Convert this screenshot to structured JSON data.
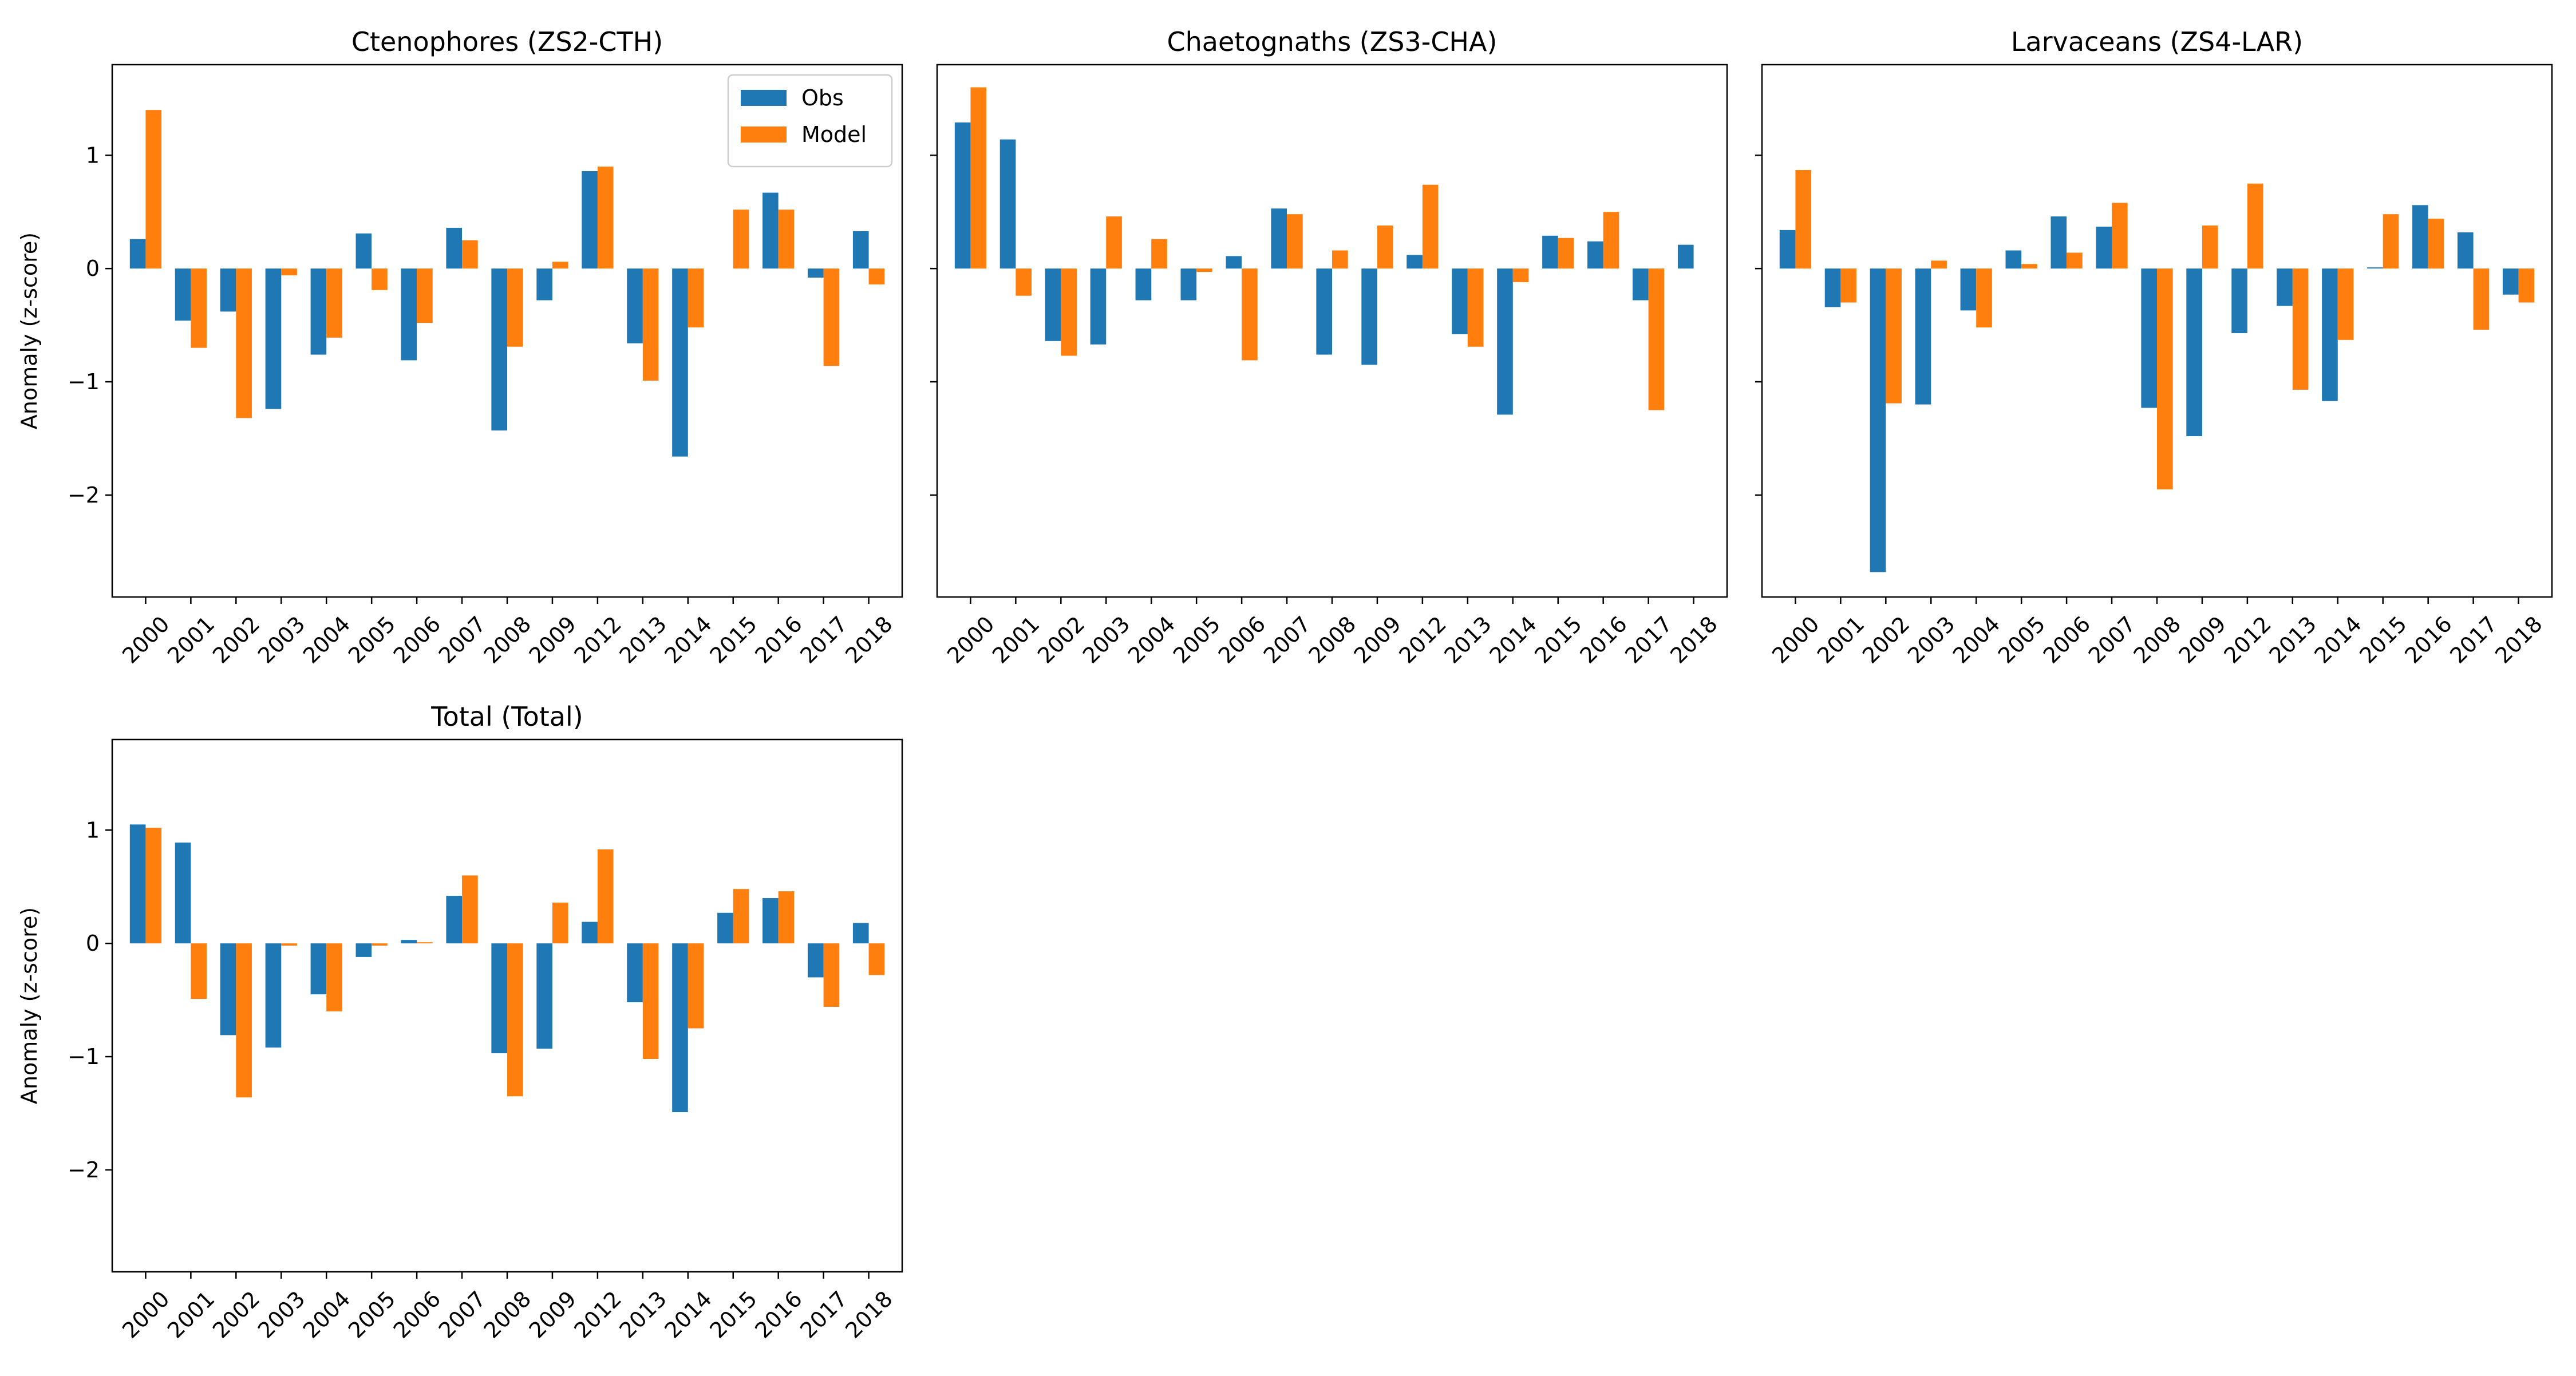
{
  "colors": {
    "obs": "#1f77b4",
    "model": "#ff7f0e"
  },
  "chart_data": [
    {
      "type": "bar",
      "title": "Ctenophores (ZS2-CTH)",
      "ylabel": "Anomaly (z-score)",
      "ylim": [
        -2.9,
        1.8
      ],
      "yticks": [
        1,
        0,
        -1,
        -2
      ],
      "ytick_labels": [
        "1",
        "0",
        "−1",
        "−2"
      ],
      "legend": {
        "show": true,
        "placement": "top-right",
        "entries": [
          "Obs",
          "Model"
        ]
      },
      "categories": [
        "2000",
        "2001",
        "2002",
        "2003",
        "2004",
        "2005",
        "2006",
        "2007",
        "2008",
        "2009",
        "2012",
        "2013",
        "2014",
        "2015",
        "2016",
        "2017",
        "2018"
      ],
      "series": [
        {
          "name": "Obs",
          "values": [
            0.26,
            -0.46,
            -0.38,
            -1.24,
            -0.76,
            0.31,
            -0.81,
            0.36,
            -1.43,
            -0.28,
            0.86,
            -0.66,
            -1.66,
            0.0,
            0.67,
            -0.08,
            0.33
          ]
        },
        {
          "name": "Model",
          "values": [
            1.4,
            -0.7,
            -1.32,
            -0.06,
            -0.61,
            -0.19,
            -0.48,
            0.25,
            -0.69,
            0.06,
            0.9,
            -0.99,
            -0.52,
            0.52,
            0.52,
            -0.86,
            -0.14
          ]
        }
      ]
    },
    {
      "type": "bar",
      "title": "Chaetognaths (ZS3-CHA)",
      "ylabel": "",
      "ylim": [
        -2.9,
        1.8
      ],
      "yticks": [
        1,
        0,
        -1,
        -2
      ],
      "ytick_labels": [
        "",
        "",
        "",
        ""
      ],
      "legend": {
        "show": false
      },
      "categories": [
        "2000",
        "2001",
        "2002",
        "2003",
        "2004",
        "2005",
        "2006",
        "2007",
        "2008",
        "2009",
        "2012",
        "2013",
        "2014",
        "2015",
        "2016",
        "2017",
        "2018"
      ],
      "series": [
        {
          "name": "Obs",
          "values": [
            1.29,
            1.14,
            -0.64,
            -0.67,
            -0.28,
            -0.28,
            0.11,
            0.53,
            -0.76,
            -0.85,
            0.12,
            -0.58,
            -1.29,
            0.29,
            0.24,
            -0.28,
            0.21
          ]
        },
        {
          "name": "Model",
          "values": [
            1.6,
            -0.24,
            -0.77,
            0.46,
            0.26,
            -0.03,
            -0.81,
            0.48,
            0.16,
            0.38,
            0.74,
            -0.69,
            -0.12,
            0.27,
            0.5,
            -1.25,
            0.0
          ]
        }
      ]
    },
    {
      "type": "bar",
      "title": "Larvaceans (ZS4-LAR)",
      "ylabel": "",
      "ylim": [
        -2.9,
        1.8
      ],
      "yticks": [
        1,
        0,
        -1,
        -2
      ],
      "ytick_labels": [
        "",
        "",
        "",
        ""
      ],
      "legend": {
        "show": false
      },
      "categories": [
        "2000",
        "2001",
        "2002",
        "2003",
        "2004",
        "2005",
        "2006",
        "2007",
        "2008",
        "2009",
        "2012",
        "2013",
        "2014",
        "2015",
        "2016",
        "2017",
        "2018"
      ],
      "series": [
        {
          "name": "Obs",
          "values": [
            0.34,
            -0.34,
            -2.68,
            -1.2,
            -0.37,
            0.16,
            0.46,
            0.37,
            -1.23,
            -1.48,
            -0.57,
            -0.33,
            -1.17,
            0.01,
            0.56,
            0.32,
            -0.23
          ]
        },
        {
          "name": "Model",
          "values": [
            0.87,
            -0.3,
            -1.19,
            0.07,
            -0.52,
            0.04,
            0.14,
            0.58,
            -1.95,
            0.38,
            0.75,
            -1.07,
            -0.63,
            0.48,
            0.44,
            -0.54,
            -0.3
          ]
        }
      ]
    },
    {
      "type": "bar",
      "title": "Total (Total)",
      "ylabel": "Anomaly (z-score)",
      "ylim": [
        -2.9,
        1.8
      ],
      "yticks": [
        1,
        0,
        -1,
        -2
      ],
      "ytick_labels": [
        "1",
        "0",
        "−1",
        "−2"
      ],
      "legend": {
        "show": false
      },
      "categories": [
        "2000",
        "2001",
        "2002",
        "2003",
        "2004",
        "2005",
        "2006",
        "2007",
        "2008",
        "2009",
        "2012",
        "2013",
        "2014",
        "2015",
        "2016",
        "2017",
        "2018"
      ],
      "series": [
        {
          "name": "Obs",
          "values": [
            1.05,
            0.89,
            -0.81,
            -0.92,
            -0.45,
            -0.12,
            0.03,
            0.42,
            -0.97,
            -0.93,
            0.19,
            -0.52,
            -1.49,
            0.27,
            0.4,
            -0.3,
            0.18
          ]
        },
        {
          "name": "Model",
          "values": [
            1.02,
            -0.49,
            -1.36,
            -0.02,
            -0.6,
            -0.02,
            0.01,
            0.6,
            -1.35,
            0.36,
            0.83,
            -1.02,
            -0.75,
            0.48,
            0.46,
            -0.56,
            -0.28
          ]
        }
      ]
    }
  ]
}
